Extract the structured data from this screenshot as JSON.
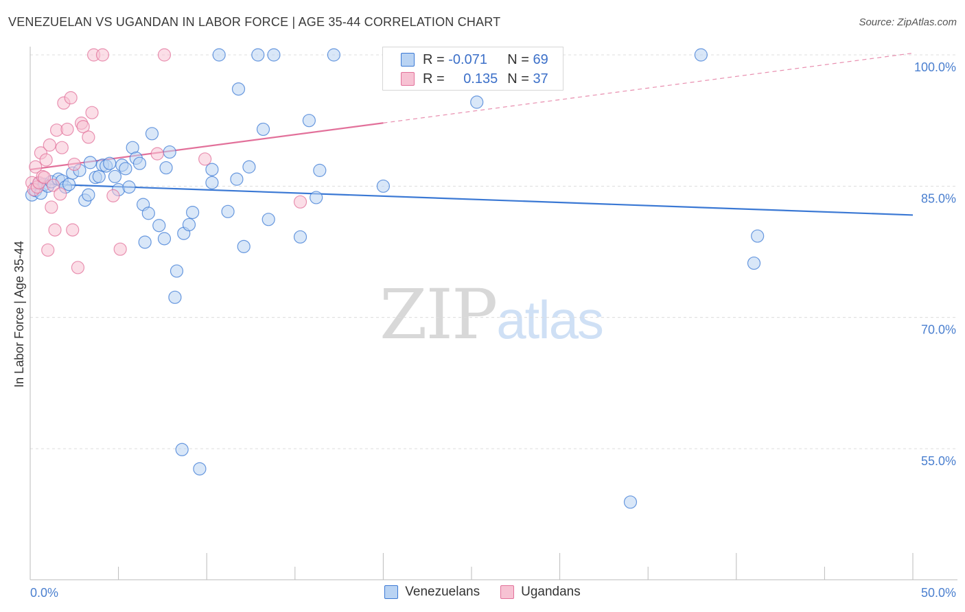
{
  "title": "VENEZUELAN VS UGANDAN IN LABOR FORCE | AGE 35-44 CORRELATION CHART",
  "source": "Source: ZipAtlas.com",
  "watermark": {
    "part1": "ZIP",
    "part2": "atlas"
  },
  "colors": {
    "blue": "#3a78d4",
    "blue_fill": "#b9d3f3",
    "pink": "#e2709a",
    "pink_fill": "#f7c2d3",
    "grid": "#dcdcdc",
    "tick_label": "#4a7fcf"
  },
  "legend": {
    "rows": [
      {
        "r_label": "R =",
        "r_value": "-0.071",
        "n_label": "N =",
        "n_value": "69"
      },
      {
        "r_label": "R =",
        "r_value": "0.135",
        "n_label": "N =",
        "n_value": "37"
      }
    ]
  },
  "bottom_legend": {
    "series1": "Venezuelans",
    "series2": "Ugandans"
  },
  "chart_data": {
    "type": "scatter",
    "title": "VENEZUELAN VS UGANDAN IN LABOR FORCE | AGE 35-44 CORRELATION CHART",
    "xlabel": "",
    "ylabel": "In Labor Force | Age 35-44",
    "xlim": [
      0,
      50
    ],
    "ylim": [
      40,
      102
    ],
    "x_tick_labels": [
      "0.0%",
      "50.0%"
    ],
    "y_ticks": [
      55,
      70,
      85,
      100
    ],
    "y_tick_labels": [
      "55.0%",
      "70.0%",
      "85.0%",
      "100.0%"
    ],
    "series": [
      {
        "name": "Venezuelans",
        "color": "#3a78d4",
        "r": "-0.071",
        "n": "69",
        "trend": {
          "x": [
            0,
            50
          ],
          "y": [
            85.3,
            81.7
          ],
          "dashed_from": null
        },
        "points": [
          [
            0.1,
            84.0
          ],
          [
            0.3,
            84.5
          ],
          [
            0.5,
            85.3
          ],
          [
            0.6,
            84.2
          ],
          [
            0.8,
            85.2
          ],
          [
            1.0,
            85.0
          ],
          [
            1.2,
            85.5
          ],
          [
            1.6,
            85.8
          ],
          [
            1.8,
            85.6
          ],
          [
            2.0,
            84.9
          ],
          [
            2.2,
            85.2
          ],
          [
            2.4,
            86.5
          ],
          [
            2.8,
            86.8
          ],
          [
            3.1,
            83.4
          ],
          [
            3.3,
            84.0
          ],
          [
            3.4,
            87.7
          ],
          [
            3.7,
            86.0
          ],
          [
            3.9,
            86.1
          ],
          [
            4.1,
            87.4
          ],
          [
            4.3,
            87.3
          ],
          [
            4.5,
            87.6
          ],
          [
            4.8,
            86.1
          ],
          [
            5.0,
            84.6
          ],
          [
            5.2,
            87.4
          ],
          [
            5.4,
            87.0
          ],
          [
            5.6,
            84.9
          ],
          [
            5.8,
            89.4
          ],
          [
            6.0,
            88.2
          ],
          [
            6.2,
            87.6
          ],
          [
            6.4,
            82.9
          ],
          [
            6.5,
            78.6
          ],
          [
            6.7,
            81.9
          ],
          [
            6.9,
            91.0
          ],
          [
            7.3,
            80.5
          ],
          [
            7.6,
            79.0
          ],
          [
            7.7,
            87.1
          ],
          [
            7.9,
            88.9
          ],
          [
            8.3,
            75.3
          ],
          [
            8.2,
            72.3
          ],
          [
            8.7,
            79.6
          ],
          [
            9.0,
            80.6
          ],
          [
            9.2,
            82.0
          ],
          [
            8.6,
            54.9
          ],
          [
            9.6,
            52.7
          ],
          [
            10.3,
            85.4
          ],
          [
            10.3,
            86.9
          ],
          [
            10.7,
            100.0
          ],
          [
            11.2,
            82.1
          ],
          [
            11.7,
            85.8
          ],
          [
            11.8,
            96.1
          ],
          [
            12.1,
            78.1
          ],
          [
            12.4,
            87.2
          ],
          [
            12.9,
            100.0
          ],
          [
            13.2,
            91.5
          ],
          [
            13.5,
            81.2
          ],
          [
            13.8,
            100.0
          ],
          [
            15.3,
            79.2
          ],
          [
            15.8,
            92.5
          ],
          [
            16.2,
            83.7
          ],
          [
            16.4,
            86.8
          ],
          [
            17.2,
            100.0
          ],
          [
            20.0,
            85.0
          ],
          [
            25.3,
            94.6
          ],
          [
            34.0,
            48.9
          ],
          [
            38.0,
            100.0
          ],
          [
            41.0,
            76.2
          ],
          [
            41.2,
            79.3
          ]
        ]
      },
      {
        "name": "Ugandans",
        "color": "#e2709a",
        "r": "0.135",
        "n": "37",
        "trend": {
          "x": [
            0,
            50
          ],
          "y": [
            86.9,
            100.2
          ],
          "solid_until": 20
        },
        "points": [
          [
            0.1,
            85.4
          ],
          [
            0.2,
            84.6
          ],
          [
            0.3,
            87.2
          ],
          [
            0.4,
            84.9
          ],
          [
            0.5,
            85.4
          ],
          [
            0.6,
            88.8
          ],
          [
            0.7,
            86.1
          ],
          [
            0.8,
            86.0
          ],
          [
            0.9,
            88.0
          ],
          [
            1.0,
            77.7
          ],
          [
            1.1,
            89.7
          ],
          [
            1.2,
            82.6
          ],
          [
            1.3,
            85.1
          ],
          [
            1.4,
            80.0
          ],
          [
            1.5,
            91.4
          ],
          [
            1.7,
            84.1
          ],
          [
            1.8,
            89.4
          ],
          [
            1.9,
            94.5
          ],
          [
            2.1,
            91.5
          ],
          [
            2.3,
            95.1
          ],
          [
            2.4,
            80.0
          ],
          [
            2.5,
            87.5
          ],
          [
            2.7,
            75.7
          ],
          [
            2.9,
            92.2
          ],
          [
            3.0,
            91.8
          ],
          [
            3.3,
            90.6
          ],
          [
            3.5,
            93.4
          ],
          [
            3.6,
            100.0
          ],
          [
            4.1,
            100.0
          ],
          [
            4.7,
            83.9
          ],
          [
            5.1,
            77.8
          ],
          [
            7.2,
            88.7
          ],
          [
            7.6,
            100.0
          ],
          [
            9.9,
            88.1
          ],
          [
            15.3,
            83.2
          ]
        ]
      }
    ]
  }
}
